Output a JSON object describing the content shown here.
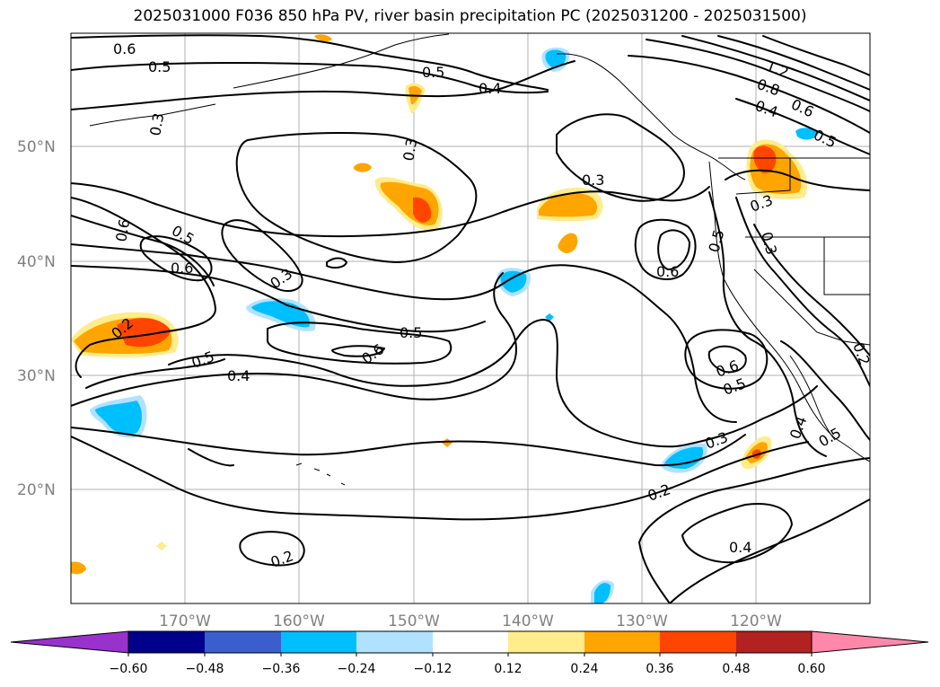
{
  "title": "2025031000 F036 850 hPa PV, river basin precipitation PC (2025031200 - 2025031500)",
  "lat_labels": [
    "50°N",
    "40°N",
    "30°N",
    "20°N"
  ],
  "lon_labels": [
    "170°W",
    "160°W",
    "150°W",
    "140°W",
    "130°W",
    "120°W"
  ],
  "contour_labels": [
    "0.6",
    "0.5",
    "0.5",
    "0.4",
    "0.3",
    "0.3",
    "1.2",
    "0.8",
    "0.4",
    "0.6",
    "0.5",
    "0.3",
    "0.3",
    "0.5",
    "0.3",
    "0.6",
    "0.5",
    "0.6",
    "0.3",
    "0.6",
    "0.2",
    "0.5",
    "0.4",
    "0.6",
    "0.5",
    "0.6",
    "0.5",
    "0.3",
    "0.2",
    "0.4",
    "0.4",
    "0.5",
    "0.2",
    "0.2"
  ],
  "colorbar": {
    "ticks": [
      "−0.60",
      "−0.48",
      "−0.36",
      "−0.24",
      "−0.12",
      "0.12",
      "0.24",
      "0.36",
      "0.48",
      "0.60"
    ],
    "colors": [
      "#9932cc",
      "#00008b",
      "#3a5fcd",
      "#00bfff",
      "#b0e2ff",
      "#ffffff",
      "#ffec8b",
      "#ffa500",
      "#ff4500",
      "#b22222",
      "#ff88aa"
    ]
  },
  "colors": {
    "grid": "#b0b0b0",
    "tick_label": "#808080",
    "contour": "#000000"
  }
}
